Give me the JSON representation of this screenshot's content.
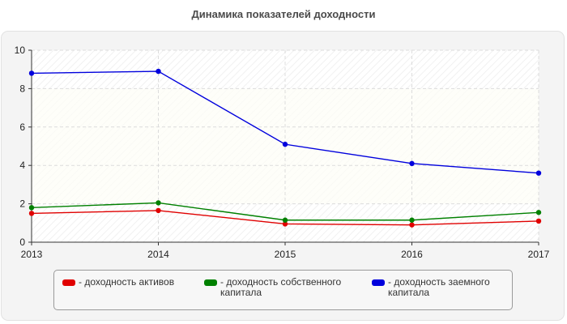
{
  "chart_data": {
    "type": "line",
    "title": "Динамика показателей доходности",
    "categories": [
      "2013",
      "2014",
      "2015",
      "2016",
      "2017"
    ],
    "yticks": [
      "0",
      "2",
      "4",
      "6",
      "8",
      "10"
    ],
    "ylim": [
      0,
      10
    ],
    "grid": true,
    "legend_position": "bottom",
    "series": [
      {
        "name": "- доходность активов",
        "color": "#e00000",
        "values": [
          1.5,
          1.65,
          0.95,
          0.9,
          1.1
        ]
      },
      {
        "name": "- доходность собственного капитала",
        "color": "#008000",
        "values": [
          1.8,
          2.05,
          1.15,
          1.15,
          1.55
        ]
      },
      {
        "name": "- доходность заемного капитала",
        "color": "#0000dd",
        "values": [
          8.8,
          8.9,
          5.1,
          4.1,
          3.6
        ]
      }
    ]
  }
}
